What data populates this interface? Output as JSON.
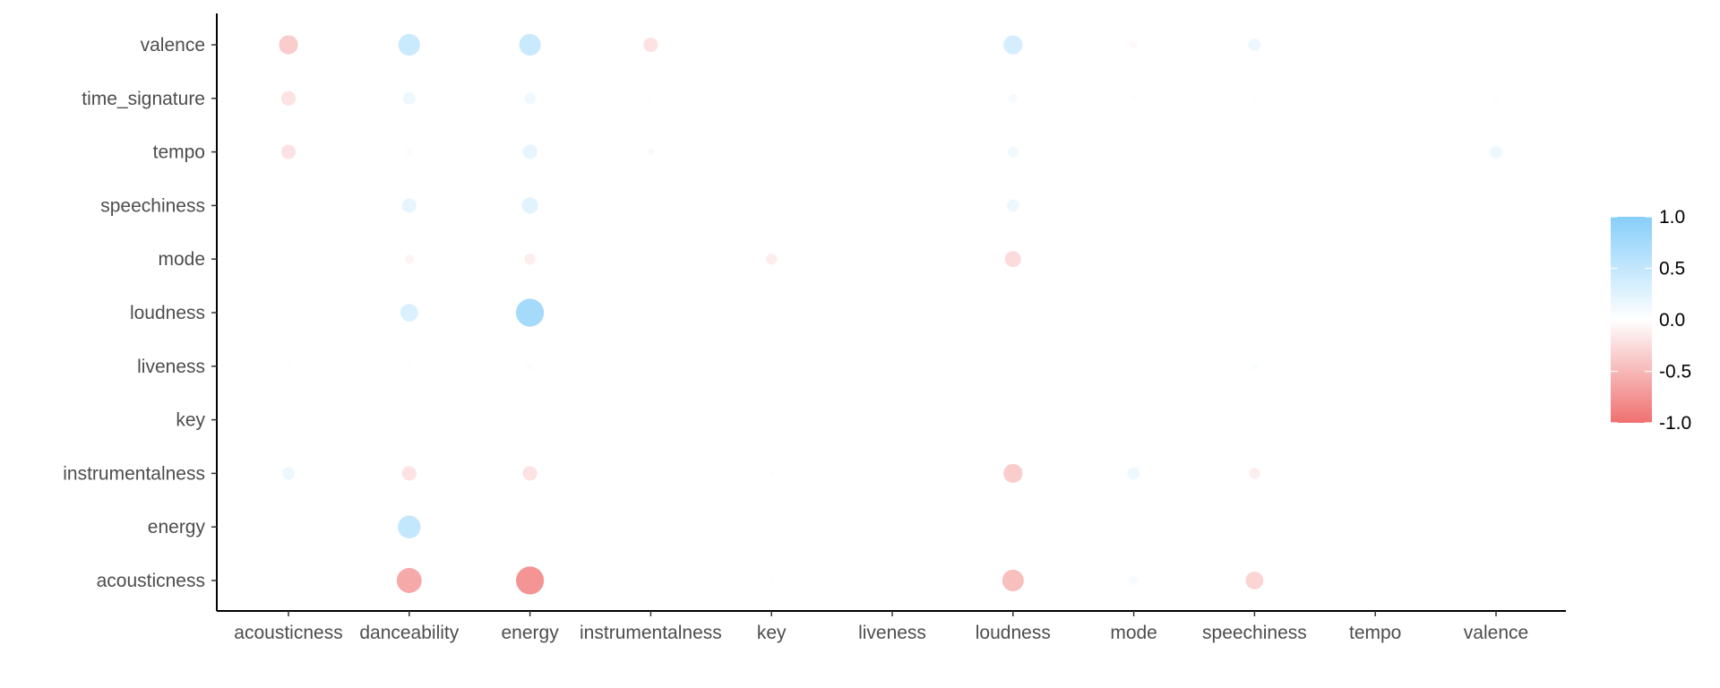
{
  "chart_data": {
    "type": "bubble-correlation",
    "title": "",
    "xlabel": "",
    "ylabel": "",
    "x_categories": [
      "acousticness",
      "danceability",
      "energy",
      "instrumentalness",
      "key",
      "liveness",
      "loudness",
      "mode",
      "speechiness",
      "tempo",
      "valence"
    ],
    "y_categories": [
      "acousticness",
      "energy",
      "instrumentalness",
      "key",
      "liveness",
      "loudness",
      "mode",
      "speechiness",
      "tempo",
      "time_signature",
      "valence"
    ],
    "grid": false,
    "legend": {
      "position": "right",
      "ticks": [
        1.0,
        0.5,
        0.0,
        -0.5,
        -1.0
      ],
      "tick_labels": [
        "1.0",
        "0.5",
        "0.0",
        "-0.5",
        "-1.0"
      ],
      "range": [
        -1.0,
        1.0
      ]
    },
    "colors": {
      "positive": "#87CEFA",
      "zero": "#FFFFFF",
      "negative": "#F07070",
      "axis": "#000000",
      "tick_text": "#4d4d4d"
    },
    "points": [
      {
        "y": "valence",
        "x": "acousticness",
        "value": -0.35
      },
      {
        "y": "valence",
        "x": "danceability",
        "value": 0.45
      },
      {
        "y": "valence",
        "x": "energy",
        "value": 0.45
      },
      {
        "y": "valence",
        "x": "instrumentalness",
        "value": -0.2
      },
      {
        "y": "valence",
        "x": "key",
        "value": 0.02
      },
      {
        "y": "valence",
        "x": "liveness",
        "value": 0.02
      },
      {
        "y": "valence",
        "x": "loudness",
        "value": 0.35
      },
      {
        "y": "valence",
        "x": "mode",
        "value": -0.05
      },
      {
        "y": "valence",
        "x": "speechiness",
        "value": 0.15
      },
      {
        "y": "time_signature",
        "x": "acousticness",
        "value": -0.2
      },
      {
        "y": "time_signature",
        "x": "danceability",
        "value": 0.15
      },
      {
        "y": "time_signature",
        "x": "energy",
        "value": 0.12
      },
      {
        "y": "time_signature",
        "x": "instrumentalness",
        "value": -0.02
      },
      {
        "y": "time_signature",
        "x": "loudness",
        "value": 0.08
      },
      {
        "y": "time_signature",
        "x": "mode",
        "value": -0.02
      },
      {
        "y": "time_signature",
        "x": "speechiness",
        "value": -0.02
      },
      {
        "y": "time_signature",
        "x": "tempo",
        "value": 0.01
      },
      {
        "y": "time_signature",
        "x": "valence",
        "value": 0.03
      },
      {
        "y": "tempo",
        "x": "acousticness",
        "value": -0.2
      },
      {
        "y": "tempo",
        "x": "danceability",
        "value": 0.05
      },
      {
        "y": "tempo",
        "x": "energy",
        "value": 0.2
      },
      {
        "y": "tempo",
        "x": "instrumentalness",
        "value": -0.05
      },
      {
        "y": "tempo",
        "x": "loudness",
        "value": 0.12
      },
      {
        "y": "tempo",
        "x": "mode",
        "value": -0.02
      },
      {
        "y": "tempo",
        "x": "speechiness",
        "value": 0.02
      },
      {
        "y": "tempo",
        "x": "valence",
        "value": 0.15
      },
      {
        "y": "speechiness",
        "x": "danceability",
        "value": 0.2
      },
      {
        "y": "speechiness",
        "x": "energy",
        "value": 0.25
      },
      {
        "y": "speechiness",
        "x": "key",
        "value": 0.02
      },
      {
        "y": "speechiness",
        "x": "loudness",
        "value": 0.15
      },
      {
        "y": "mode",
        "x": "danceability",
        "value": -0.08
      },
      {
        "y": "mode",
        "x": "energy",
        "value": -0.12
      },
      {
        "y": "mode",
        "x": "key",
        "value": -0.12
      },
      {
        "y": "mode",
        "x": "loudness",
        "value": -0.25
      },
      {
        "y": "loudness",
        "x": "danceability",
        "value": 0.3
      },
      {
        "y": "loudness",
        "x": "energy",
        "value": 0.75
      },
      {
        "y": "loudness",
        "x": "key",
        "value": 0.01
      },
      {
        "y": "liveness",
        "x": "acousticness",
        "value": -0.02
      },
      {
        "y": "liveness",
        "x": "danceability",
        "value": -0.02
      },
      {
        "y": "liveness",
        "x": "energy",
        "value": 0.05
      },
      {
        "y": "liveness",
        "x": "loudness",
        "value": 0.02
      },
      {
        "y": "liveness",
        "x": "speechiness",
        "value": 0.05
      },
      {
        "y": "key",
        "x": "danceability",
        "value": 0.01
      },
      {
        "y": "key",
        "x": "energy",
        "value": 0.01
      },
      {
        "y": "instrumentalness",
        "x": "acousticness",
        "value": 0.15
      },
      {
        "y": "instrumentalness",
        "x": "danceability",
        "value": -0.2
      },
      {
        "y": "instrumentalness",
        "x": "energy",
        "value": -0.2
      },
      {
        "y": "instrumentalness",
        "x": "key",
        "value": -0.02
      },
      {
        "y": "instrumentalness",
        "x": "loudness",
        "value": -0.35
      },
      {
        "y": "instrumentalness",
        "x": "mode",
        "value": 0.15
      },
      {
        "y": "instrumentalness",
        "x": "speechiness",
        "value": -0.12
      },
      {
        "y": "energy",
        "x": "danceability",
        "value": 0.5
      },
      {
        "y": "acousticness",
        "x": "danceability",
        "value": -0.6
      },
      {
        "y": "acousticness",
        "x": "energy",
        "value": -0.75
      },
      {
        "y": "acousticness",
        "x": "key",
        "value": -0.02
      },
      {
        "y": "acousticness",
        "x": "loudness",
        "value": -0.45
      },
      {
        "y": "acousticness",
        "x": "mode",
        "value": 0.08
      },
      {
        "y": "acousticness",
        "x": "speechiness",
        "value": -0.3
      }
    ]
  }
}
